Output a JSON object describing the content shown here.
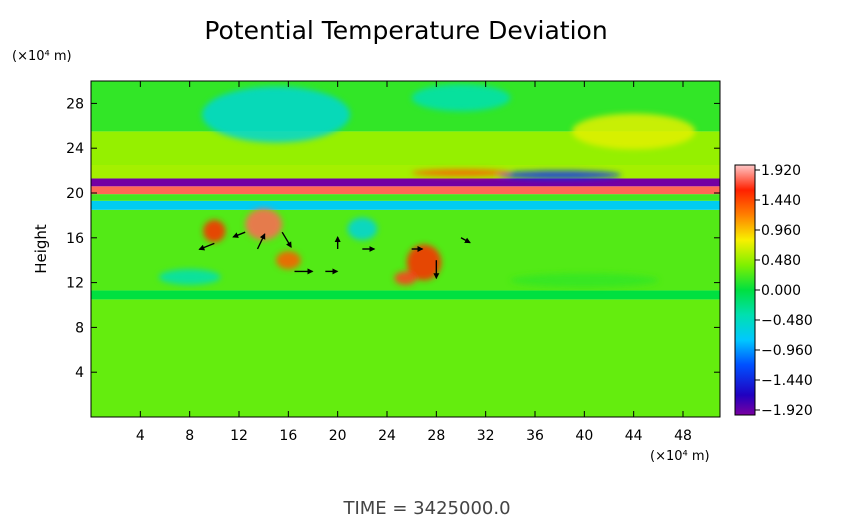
{
  "chart_data": {
    "type": "heatmap",
    "title": "Potential Temperature Deviation",
    "ylabel": "Height",
    "y_unit": "(×10⁴ m)",
    "x_unit": "(×10⁴ m)",
    "xlim": [
      0,
      51
    ],
    "ylim": [
      0,
      30
    ],
    "x_ticks": [
      4,
      8,
      12,
      16,
      20,
      24,
      28,
      32,
      36,
      40,
      44,
      48
    ],
    "y_ticks": [
      4,
      8,
      12,
      16,
      20,
      24,
      28
    ],
    "colorbar": {
      "ticks": [
        "1.920",
        "1.440",
        "0.960",
        "0.480",
        "0.000",
        "−0.480",
        "−0.960",
        "−1.440",
        "−1.920"
      ],
      "range": [
        -1.92,
        1.92
      ]
    },
    "bands": [
      {
        "y0": 0,
        "y1": 10.5,
        "value": 0.3
      },
      {
        "y0": 10.5,
        "y1": 11.3,
        "value": 0.0
      },
      {
        "y0": 11.3,
        "y1": 18.5,
        "value": 0.25
      },
      {
        "y0": 18.5,
        "y1": 19.3,
        "value": -0.7
      },
      {
        "y0": 19.3,
        "y1": 19.9,
        "value": 0.2
      },
      {
        "y0": 19.9,
        "y1": 20.6,
        "value": 1.7
      },
      {
        "y0": 20.6,
        "y1": 21.3,
        "value": -1.9
      },
      {
        "y0": 21.3,
        "y1": 22.5,
        "value": 0.5
      },
      {
        "y0": 22.5,
        "y1": 25.5,
        "value": 0.45
      },
      {
        "y0": 25.5,
        "y1": 30,
        "value": 0.15
      }
    ],
    "patches": [
      {
        "x": 14,
        "y": 17.2,
        "rx": 1.5,
        "ry": 1.4,
        "value": 1.7
      },
      {
        "x": 10,
        "y": 16.6,
        "rx": 0.9,
        "ry": 1.0,
        "value": 1.5
      },
      {
        "x": 16,
        "y": 14.0,
        "rx": 1.0,
        "ry": 0.8,
        "value": 1.3
      },
      {
        "x": 27,
        "y": 13.8,
        "rx": 1.4,
        "ry": 1.6,
        "value": 1.5
      },
      {
        "x": 25.5,
        "y": 12.4,
        "rx": 0.9,
        "ry": 0.6,
        "value": 1.6
      },
      {
        "x": 22,
        "y": 16.8,
        "rx": 1.2,
        "ry": 1.0,
        "value": -0.6
      },
      {
        "x": 8,
        "y": 12.5,
        "rx": 2.5,
        "ry": 0.7,
        "value": -0.4
      },
      {
        "x": 40,
        "y": 12.2,
        "rx": 6,
        "ry": 0.6,
        "value": 0.15
      },
      {
        "x": 15,
        "y": 27,
        "rx": 6,
        "ry": 2.5,
        "value": -0.55
      },
      {
        "x": 30,
        "y": 28.5,
        "rx": 4,
        "ry": 1.2,
        "value": -0.4
      },
      {
        "x": 44,
        "y": 25.5,
        "rx": 5,
        "ry": 1.6,
        "value": 0.7
      },
      {
        "x": 38,
        "y": 21.6,
        "rx": 5,
        "ry": 0.4,
        "value": -1.3
      },
      {
        "x": 30,
        "y": 21.8,
        "rx": 4,
        "ry": 0.3,
        "value": 1.3
      }
    ],
    "vectors": [
      {
        "x": 10,
        "y": 15.5,
        "u": -2.5,
        "v": -1.0
      },
      {
        "x": 12.5,
        "y": 16.5,
        "u": -2.0,
        "v": -0.8
      },
      {
        "x": 13.5,
        "y": 15.0,
        "u": 1.2,
        "v": 2.5
      },
      {
        "x": 15.5,
        "y": 16.5,
        "u": 1.5,
        "v": -2.5
      },
      {
        "x": 16.5,
        "y": 13.0,
        "u": 3.0,
        "v": 0.0
      },
      {
        "x": 20,
        "y": 15.0,
        "u": 0.0,
        "v": 2.0
      },
      {
        "x": 22,
        "y": 15.0,
        "u": 2.0,
        "v": 0.0
      },
      {
        "x": 28,
        "y": 14.0,
        "u": 0.0,
        "v": -3.0
      },
      {
        "x": 30,
        "y": 16.0,
        "u": 1.5,
        "v": -0.8
      },
      {
        "x": 19,
        "y": 13.0,
        "u": 2.0,
        "v": 0.0
      },
      {
        "x": 26,
        "y": 15.0,
        "u": 1.8,
        "v": 0.0
      }
    ],
    "time_label": "TIME  =  3425000.0"
  }
}
